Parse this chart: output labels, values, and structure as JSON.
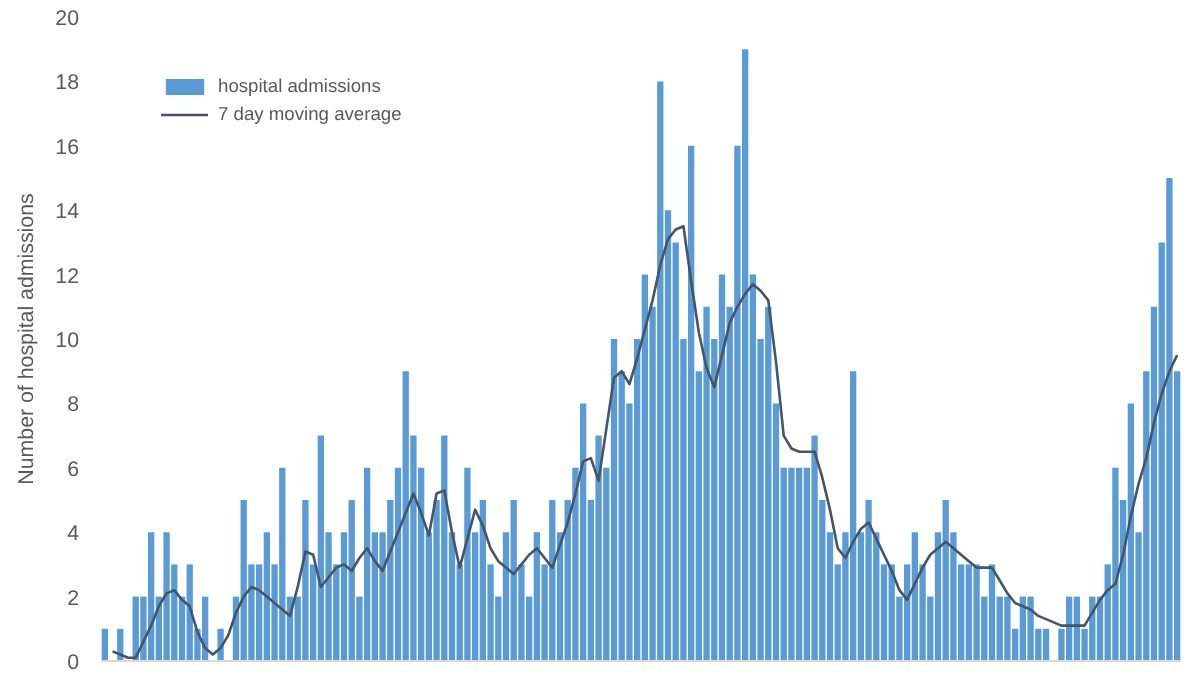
{
  "chart_data": {
    "type": "bar",
    "ylabel": "Number of hospital admissions",
    "categories": [
      null,
      null,
      null,
      null,
      null,
      null,
      null,
      null,
      null,
      null,
      null,
      null,
      null,
      null,
      null,
      null,
      null,
      null,
      null,
      null,
      null,
      null,
      null,
      null,
      null,
      null,
      null,
      null,
      null,
      null,
      null,
      null,
      null,
      null,
      null,
      null,
      null,
      null,
      null,
      null,
      null,
      null,
      null,
      null,
      null,
      null,
      null,
      null,
      null,
      null,
      null,
      null,
      null,
      null,
      null,
      null,
      null,
      null,
      null,
      null,
      null,
      null,
      null,
      null,
      null,
      null,
      null,
      null,
      null,
      null,
      null,
      null,
      null,
      null,
      null,
      null,
      null,
      null,
      null,
      null,
      null,
      null,
      null,
      null,
      null,
      null,
      null,
      null,
      null,
      null,
      null,
      null,
      null,
      null,
      null,
      null,
      null,
      null,
      null,
      null,
      null,
      null,
      null,
      null,
      null,
      null,
      null,
      null,
      null,
      null,
      null,
      null,
      null,
      null,
      null,
      null,
      null,
      null,
      null,
      null,
      null,
      null,
      null,
      null,
      null,
      null,
      null,
      null,
      null,
      null,
      null,
      null,
      null,
      null,
      null,
      null,
      null,
      null,
      null,
      null
    ],
    "series": [
      {
        "name": "hospital admissions",
        "color": "#5b9bd5",
        "values": [
          1,
          0,
          1,
          0,
          2,
          2,
          4,
          2,
          4,
          3,
          2,
          3,
          1,
          2,
          0,
          1,
          0,
          2,
          5,
          3,
          3,
          4,
          3,
          6,
          2,
          2,
          5,
          3,
          7,
          4,
          3,
          4,
          5,
          2,
          6,
          4,
          4,
          5,
          6,
          9,
          7,
          6,
          4,
          5,
          7,
          4,
          3,
          6,
          4,
          5,
          3,
          2,
          4,
          5,
          3,
          2,
          4,
          3,
          5,
          4,
          5,
          6,
          8,
          5,
          7,
          6,
          10,
          9,
          8,
          10,
          12,
          11,
          18,
          14,
          13,
          10,
          16,
          9,
          11,
          10,
          12,
          11,
          16,
          19,
          12,
          10,
          11,
          8,
          6,
          6,
          6,
          6,
          7,
          5,
          4,
          3,
          4,
          9,
          4,
          5,
          4,
          3,
          3,
          2,
          3,
          4,
          3,
          2,
          4,
          5,
          4,
          3,
          3,
          3,
          2,
          3,
          2,
          2,
          1,
          2,
          2,
          1,
          1,
          0,
          1,
          2,
          2,
          1,
          2,
          2,
          3,
          6,
          5,
          8,
          4,
          9,
          11,
          13,
          15,
          9
        ]
      },
      {
        "name": "7 day moving average",
        "type": "line",
        "color": "#44546a",
        "values": [
          null,
          0.3,
          0.2,
          0.1,
          0.1,
          0.6,
          1.1,
          1.7,
          2.1,
          2.2,
          1.9,
          1.7,
          0.9,
          0.4,
          0.2,
          0.4,
          0.8,
          1.5,
          2.0,
          2.3,
          2.2,
          2.0,
          1.8,
          1.6,
          1.4,
          2.3,
          3.4,
          3.3,
          2.3,
          2.6,
          2.9,
          3.0,
          2.8,
          3.2,
          3.5,
          3.1,
          2.8,
          3.4,
          4.0,
          4.6,
          5.2,
          4.6,
          3.9,
          5.2,
          5.3,
          4.0,
          2.9,
          3.8,
          4.7,
          4.2,
          3.5,
          3.1,
          2.9,
          2.7,
          3.0,
          3.3,
          3.5,
          3.2,
          2.9,
          3.6,
          4.3,
          5.2,
          6.2,
          6.3,
          5.6,
          7.2,
          8.8,
          9.0,
          8.6,
          9.4,
          10.3,
          11.2,
          12.3,
          13.1,
          13.4,
          13.5,
          11.8,
          10.2,
          9.1,
          8.5,
          9.5,
          10.5,
          11.0,
          11.4,
          11.7,
          11.5,
          11.2,
          9.3,
          7.0,
          6.6,
          6.5,
          6.5,
          6.5,
          5.7,
          4.7,
          3.5,
          3.2,
          3.7,
          4.1,
          4.3,
          3.8,
          3.3,
          2.8,
          2.2,
          1.9,
          2.4,
          2.9,
          3.3,
          3.5,
          3.7,
          3.5,
          3.3,
          3.1,
          2.9,
          2.9,
          2.9,
          2.5,
          2.1,
          1.8,
          1.7,
          1.6,
          1.4,
          1.3,
          1.2,
          1.1,
          1.1,
          1.1,
          1.1,
          1.5,
          1.9,
          2.2,
          2.4,
          3.3,
          4.5,
          5.5,
          6.3,
          7.4,
          8.3,
          9.0,
          9.5
        ]
      }
    ],
    "ylim": [
      0,
      20
    ],
    "yticks": [
      0,
      2,
      4,
      6,
      8,
      10,
      12,
      14,
      16,
      18,
      20
    ],
    "grid": false,
    "legend": "top left",
    "tick_labels": "y",
    "line_style": "solid",
    "marker": "none"
  }
}
